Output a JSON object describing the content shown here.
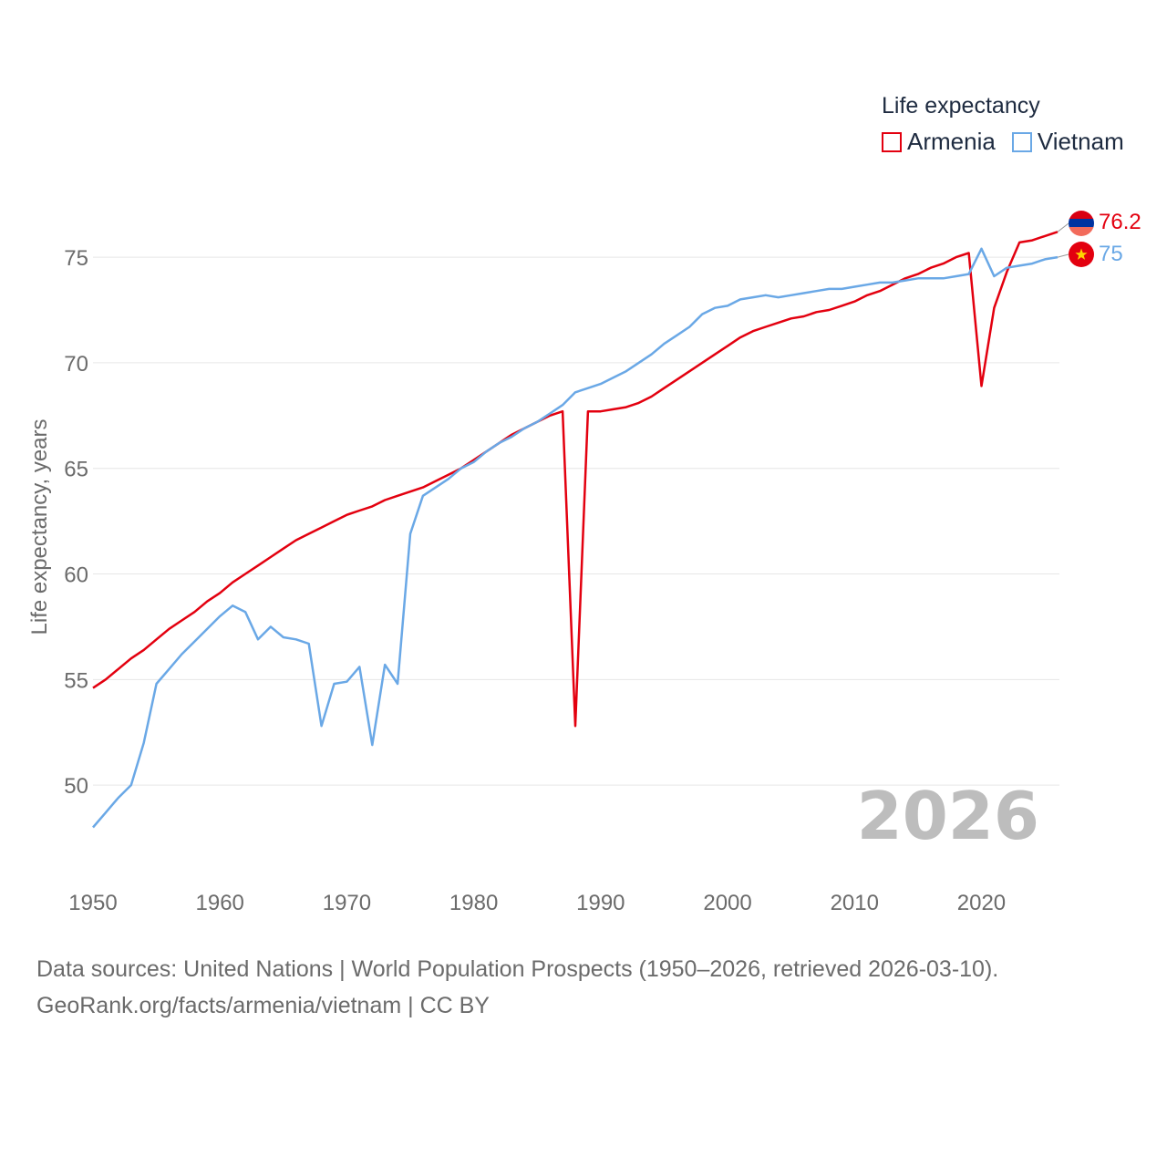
{
  "legend": {
    "title": "Life expectancy",
    "items": [
      {
        "label": "Armenia",
        "color": "#e3000f"
      },
      {
        "label": "Vietnam",
        "color": "#6aa8e6"
      }
    ]
  },
  "year_watermark": "2026",
  "footer": {
    "line1": "Data sources: United Nations | World Population Prospects (1950–2026, retrieved 2026-03-10).",
    "line2": "GeoRank.org/facts/armenia/vietnam | CC BY"
  },
  "chart_data": {
    "type": "line",
    "title": "Life expectancy",
    "xlabel": "",
    "ylabel": "Life expectancy, years",
    "xlim": [
      1950,
      2026
    ],
    "ylim": [
      47.2,
      76.3
    ],
    "xticks": [
      1950,
      1960,
      1970,
      1980,
      1990,
      2000,
      2010,
      2020
    ],
    "yticks": [
      50,
      55,
      60,
      65,
      70,
      75
    ],
    "grid": true,
    "legend_position": "top-right",
    "series": [
      {
        "name": "Armenia",
        "color": "#e3000f",
        "end_label": "76.2",
        "x": [
          1950,
          1951,
          1952,
          1953,
          1954,
          1955,
          1956,
          1957,
          1958,
          1959,
          1960,
          1961,
          1962,
          1963,
          1964,
          1965,
          1966,
          1967,
          1968,
          1969,
          1970,
          1971,
          1972,
          1973,
          1974,
          1975,
          1976,
          1977,
          1978,
          1979,
          1980,
          1981,
          1982,
          1983,
          1984,
          1985,
          1986,
          1987,
          1988,
          1989,
          1990,
          1991,
          1992,
          1993,
          1994,
          1995,
          1996,
          1997,
          1998,
          1999,
          2000,
          2001,
          2002,
          2003,
          2004,
          2005,
          2006,
          2007,
          2008,
          2009,
          2010,
          2011,
          2012,
          2013,
          2014,
          2015,
          2016,
          2017,
          2018,
          2019,
          2020,
          2021,
          2022,
          2023,
          2024,
          2025,
          2026
        ],
        "values": [
          54.6,
          55.0,
          55.5,
          56.0,
          56.4,
          56.9,
          57.4,
          57.8,
          58.2,
          58.7,
          59.1,
          59.6,
          60.0,
          60.4,
          60.8,
          61.2,
          61.6,
          61.9,
          62.2,
          62.5,
          62.8,
          63.0,
          63.2,
          63.5,
          63.7,
          63.9,
          64.1,
          64.4,
          64.7,
          65.0,
          65.4,
          65.8,
          66.2,
          66.6,
          66.9,
          67.2,
          67.5,
          67.7,
          52.8,
          67.7,
          67.7,
          67.8,
          67.9,
          68.1,
          68.4,
          68.8,
          69.2,
          69.6,
          70.0,
          70.4,
          70.8,
          71.2,
          71.5,
          71.7,
          71.9,
          72.1,
          72.2,
          72.4,
          72.5,
          72.7,
          72.9,
          73.2,
          73.4,
          73.7,
          74.0,
          74.2,
          74.5,
          74.7,
          75.0,
          75.2,
          68.9,
          72.6,
          74.3,
          75.7,
          75.8,
          76.0,
          76.2
        ]
      },
      {
        "name": "Vietnam",
        "color": "#6aa8e6",
        "end_label": "75",
        "x": [
          1950,
          1951,
          1952,
          1953,
          1954,
          1955,
          1956,
          1957,
          1958,
          1959,
          1960,
          1961,
          1962,
          1963,
          1964,
          1965,
          1966,
          1967,
          1968,
          1969,
          1970,
          1971,
          1972,
          1973,
          1974,
          1975,
          1976,
          1977,
          1978,
          1979,
          1980,
          1981,
          1982,
          1983,
          1984,
          1985,
          1986,
          1987,
          1988,
          1989,
          1990,
          1991,
          1992,
          1993,
          1994,
          1995,
          1996,
          1997,
          1998,
          1999,
          2000,
          2001,
          2002,
          2003,
          2004,
          2005,
          2006,
          2007,
          2008,
          2009,
          2010,
          2011,
          2012,
          2013,
          2014,
          2015,
          2016,
          2017,
          2018,
          2019,
          2020,
          2021,
          2022,
          2023,
          2024,
          2025,
          2026
        ],
        "values": [
          48.0,
          48.7,
          49.4,
          50.0,
          52.0,
          54.8,
          55.5,
          56.2,
          56.8,
          57.4,
          58.0,
          58.5,
          58.2,
          56.9,
          57.5,
          57.0,
          56.9,
          56.7,
          52.8,
          54.8,
          54.9,
          55.6,
          51.9,
          55.7,
          54.8,
          61.9,
          63.7,
          64.1,
          64.5,
          65.0,
          65.3,
          65.8,
          66.2,
          66.5,
          66.9,
          67.2,
          67.6,
          68.0,
          68.6,
          68.8,
          69.0,
          69.3,
          69.6,
          70.0,
          70.4,
          70.9,
          71.3,
          71.7,
          72.3,
          72.6,
          72.7,
          73.0,
          73.1,
          73.2,
          73.1,
          73.2,
          73.3,
          73.4,
          73.5,
          73.5,
          73.6,
          73.7,
          73.8,
          73.8,
          73.9,
          74.0,
          74.0,
          74.0,
          74.1,
          74.2,
          75.4,
          74.1,
          74.5,
          74.6,
          74.7,
          74.9,
          75.0
        ]
      }
    ]
  }
}
